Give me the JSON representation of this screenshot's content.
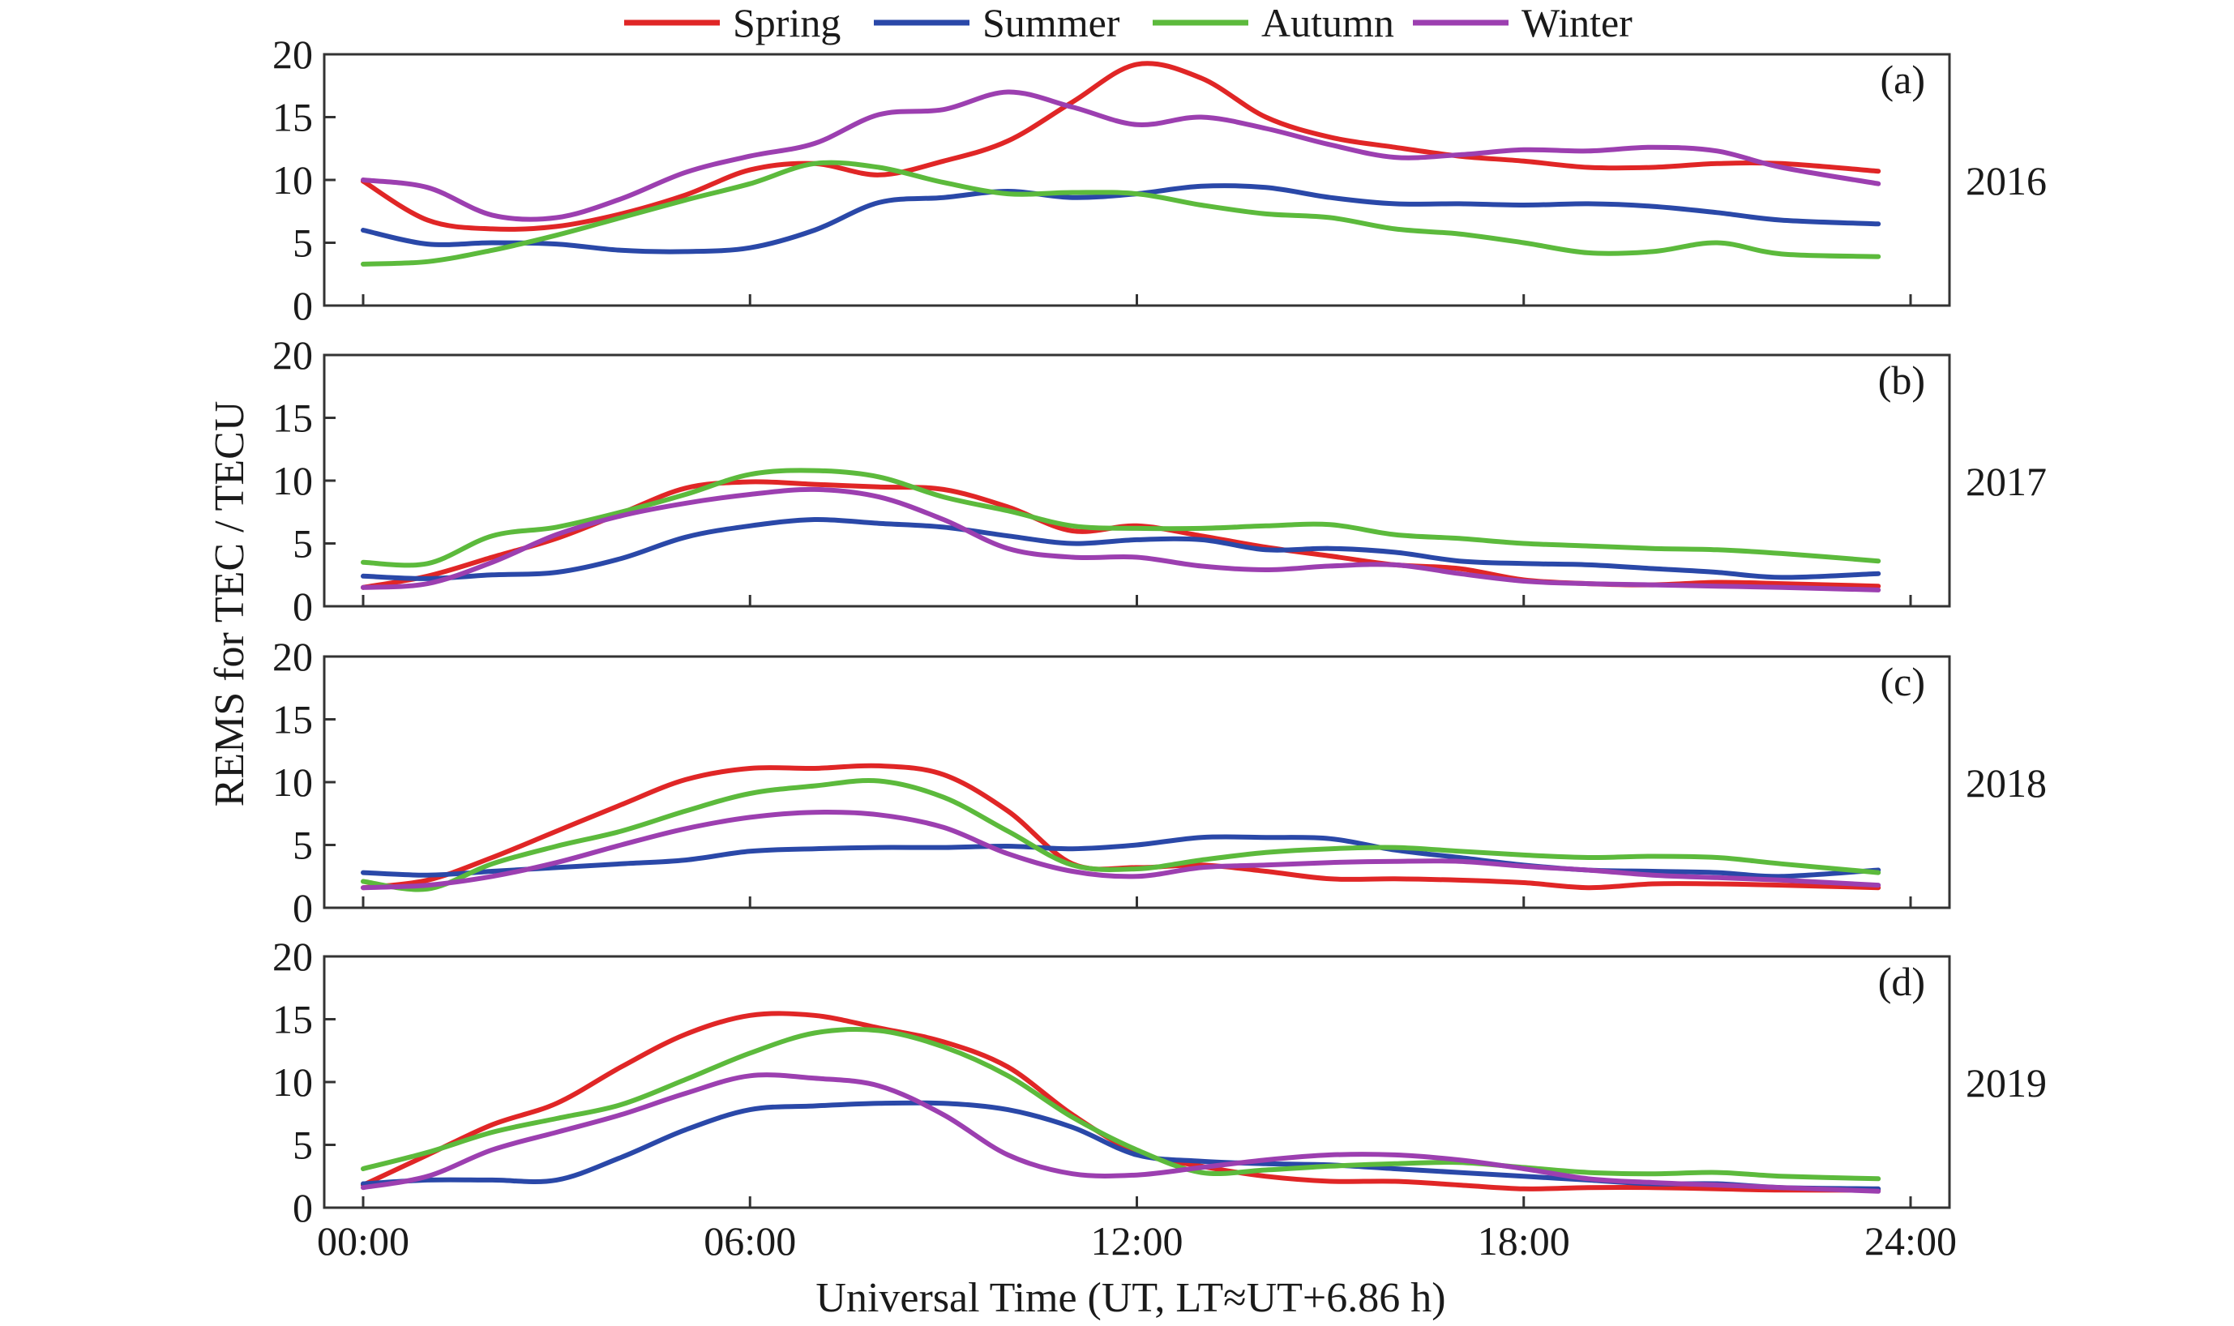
{
  "chart_data": {
    "type": "line",
    "legend": {
      "placement": "top",
      "entries": [
        "Spring",
        "Summer",
        "Autumn",
        "Winter"
      ]
    },
    "xlabel": "Universal Time (UT, LT≈UT+6.86 h)",
    "ylabel": "REMS for TEC / TECU",
    "xlim": [
      0,
      24
    ],
    "x_ticks": [
      "00:00",
      "06:00",
      "12:00",
      "18:00",
      "24:00"
    ],
    "x_tick_values": [
      0,
      6,
      12,
      18,
      24
    ],
    "ylim": [
      0,
      20
    ],
    "y_ticks": [
      "0",
      "5",
      "10",
      "15",
      "20"
    ],
    "y_tick_values": [
      0,
      5,
      10,
      15,
      20
    ],
    "grid": false,
    "colors": {
      "Spring": "#e02626",
      "Summer": "#2a48a8",
      "Autumn": "#5cba3c",
      "Winter": "#9c3fb0"
    },
    "x": [
      0,
      1,
      2,
      3,
      4,
      5,
      6,
      7,
      8,
      9,
      10,
      11,
      12,
      13,
      14,
      15,
      16,
      17,
      18,
      19,
      20,
      21,
      22,
      23.5
    ],
    "panels": [
      {
        "tag": "(a)",
        "year": "2016",
        "series": [
          {
            "name": "Spring",
            "values": [
              9.9,
              6.8,
              6.1,
              6.3,
              7.3,
              8.8,
              10.8,
              11.3,
              10.4,
              11.5,
              13.1,
              16.2,
              19.2,
              18.1,
              15.0,
              13.4,
              12.6,
              11.9,
              11.5,
              11.0,
              11.0,
              11.3,
              11.3,
              10.7
            ]
          },
          {
            "name": "Summer",
            "values": [
              6.0,
              4.9,
              5.0,
              4.9,
              4.4,
              4.3,
              4.6,
              6.0,
              8.2,
              8.6,
              9.1,
              8.6,
              8.9,
              9.5,
              9.4,
              8.6,
              8.1,
              8.1,
              8.0,
              8.1,
              7.9,
              7.4,
              6.8,
              6.5
            ]
          },
          {
            "name": "Autumn",
            "values": [
              3.3,
              3.5,
              4.4,
              5.6,
              7.0,
              8.4,
              9.7,
              11.3,
              11.0,
              9.8,
              8.9,
              9.0,
              8.9,
              8.0,
              7.3,
              7.0,
              6.1,
              5.7,
              5.0,
              4.2,
              4.3,
              5.0,
              4.1,
              3.9
            ]
          },
          {
            "name": "Winter",
            "values": [
              10.0,
              9.4,
              7.2,
              7.0,
              8.5,
              10.6,
              11.9,
              12.9,
              15.2,
              15.6,
              17.0,
              15.8,
              14.4,
              15.0,
              14.1,
              12.8,
              11.8,
              12.0,
              12.4,
              12.3,
              12.6,
              12.3,
              11.0,
              9.7
            ]
          }
        ]
      },
      {
        "tag": "(b)",
        "year": "2017",
        "series": [
          {
            "name": "Spring",
            "values": [
              1.5,
              2.4,
              3.9,
              5.4,
              7.4,
              9.4,
              9.9,
              9.7,
              9.5,
              9.3,
              7.9,
              6.0,
              6.4,
              5.6,
              4.7,
              4.0,
              3.3,
              3.0,
              2.1,
              1.8,
              1.7,
              1.9,
              1.8,
              1.6
            ]
          },
          {
            "name": "Summer",
            "values": [
              2.4,
              2.2,
              2.5,
              2.7,
              3.8,
              5.5,
              6.4,
              6.9,
              6.6,
              6.3,
              5.6,
              5.0,
              5.3,
              5.3,
              4.5,
              4.6,
              4.3,
              3.6,
              3.4,
              3.3,
              3.0,
              2.7,
              2.3,
              2.6
            ]
          },
          {
            "name": "Autumn",
            "values": [
              3.5,
              3.4,
              5.6,
              6.3,
              7.5,
              8.9,
              10.5,
              10.8,
              10.3,
              8.7,
              7.6,
              6.4,
              6.2,
              6.2,
              6.4,
              6.5,
              5.7,
              5.4,
              5.0,
              4.8,
              4.6,
              4.5,
              4.2,
              3.6
            ]
          },
          {
            "name": "Winter",
            "values": [
              1.5,
              1.8,
              3.5,
              5.7,
              7.2,
              8.2,
              8.9,
              9.3,
              8.7,
              6.9,
              4.6,
              3.9,
              3.9,
              3.2,
              2.9,
              3.2,
              3.3,
              2.6,
              2.0,
              1.8,
              1.7,
              1.6,
              1.5,
              1.3
            ]
          }
        ]
      },
      {
        "tag": "(c)",
        "year": "2018",
        "series": [
          {
            "name": "Spring",
            "values": [
              1.6,
              2.2,
              4.0,
              6.1,
              8.2,
              10.2,
              11.1,
              11.1,
              11.3,
              10.6,
              7.7,
              3.5,
              3.2,
              3.4,
              2.9,
              2.3,
              2.3,
              2.2,
              2.0,
              1.6,
              1.9,
              1.9,
              1.8,
              1.6
            ]
          },
          {
            "name": "Summer",
            "values": [
              2.8,
              2.6,
              2.9,
              3.2,
              3.5,
              3.8,
              4.5,
              4.7,
              4.8,
              4.8,
              4.9,
              4.7,
              5.0,
              5.6,
              5.6,
              5.5,
              4.6,
              4.0,
              3.4,
              3.0,
              2.9,
              2.8,
              2.5,
              3.0
            ]
          },
          {
            "name": "Autumn",
            "values": [
              2.1,
              1.5,
              3.5,
              4.9,
              6.1,
              7.7,
              9.1,
              9.7,
              10.1,
              8.8,
              6.1,
              3.4,
              3.1,
              3.8,
              4.4,
              4.7,
              4.8,
              4.5,
              4.2,
              4.0,
              4.1,
              4.0,
              3.5,
              2.8
            ]
          },
          {
            "name": "Winter",
            "values": [
              1.6,
              1.8,
              2.5,
              3.6,
              5.0,
              6.3,
              7.2,
              7.6,
              7.4,
              6.4,
              4.3,
              2.9,
              2.5,
              3.2,
              3.4,
              3.6,
              3.7,
              3.7,
              3.3,
              3.0,
              2.6,
              2.4,
              2.2,
              1.8
            ]
          }
        ]
      },
      {
        "tag": "(d)",
        "year": "2019",
        "series": [
          {
            "name": "Spring",
            "values": [
              1.8,
              4.2,
              6.6,
              8.3,
              11.2,
              13.8,
              15.3,
              15.3,
              14.3,
              13.2,
              11.2,
              7.4,
              4.4,
              3.3,
              2.5,
              2.1,
              2.1,
              1.8,
              1.5,
              1.6,
              1.6,
              1.5,
              1.4,
              1.4
            ]
          },
          {
            "name": "Summer",
            "values": [
              1.9,
              2.2,
              2.2,
              2.2,
              4.0,
              6.2,
              7.8,
              8.1,
              8.3,
              8.3,
              7.8,
              6.4,
              4.2,
              3.7,
              3.5,
              3.4,
              3.1,
              2.8,
              2.5,
              2.2,
              1.9,
              1.9,
              1.6,
              1.5
            ]
          },
          {
            "name": "Autumn",
            "values": [
              3.1,
              4.4,
              6.0,
              7.1,
              8.2,
              10.2,
              12.3,
              13.9,
              14.1,
              12.8,
              10.5,
              7.2,
              4.6,
              2.8,
              3.0,
              3.3,
              3.5,
              3.6,
              3.2,
              2.8,
              2.7,
              2.8,
              2.5,
              2.3
            ]
          },
          {
            "name": "Winter",
            "values": [
              1.6,
              2.5,
              4.6,
              6.0,
              7.4,
              9.1,
              10.5,
              10.3,
              9.7,
              7.4,
              4.2,
              2.7,
              2.6,
              3.2,
              3.8,
              4.2,
              4.2,
              3.8,
              3.1,
              2.3,
              2.0,
              1.8,
              1.6,
              1.3
            ]
          }
        ]
      }
    ]
  }
}
